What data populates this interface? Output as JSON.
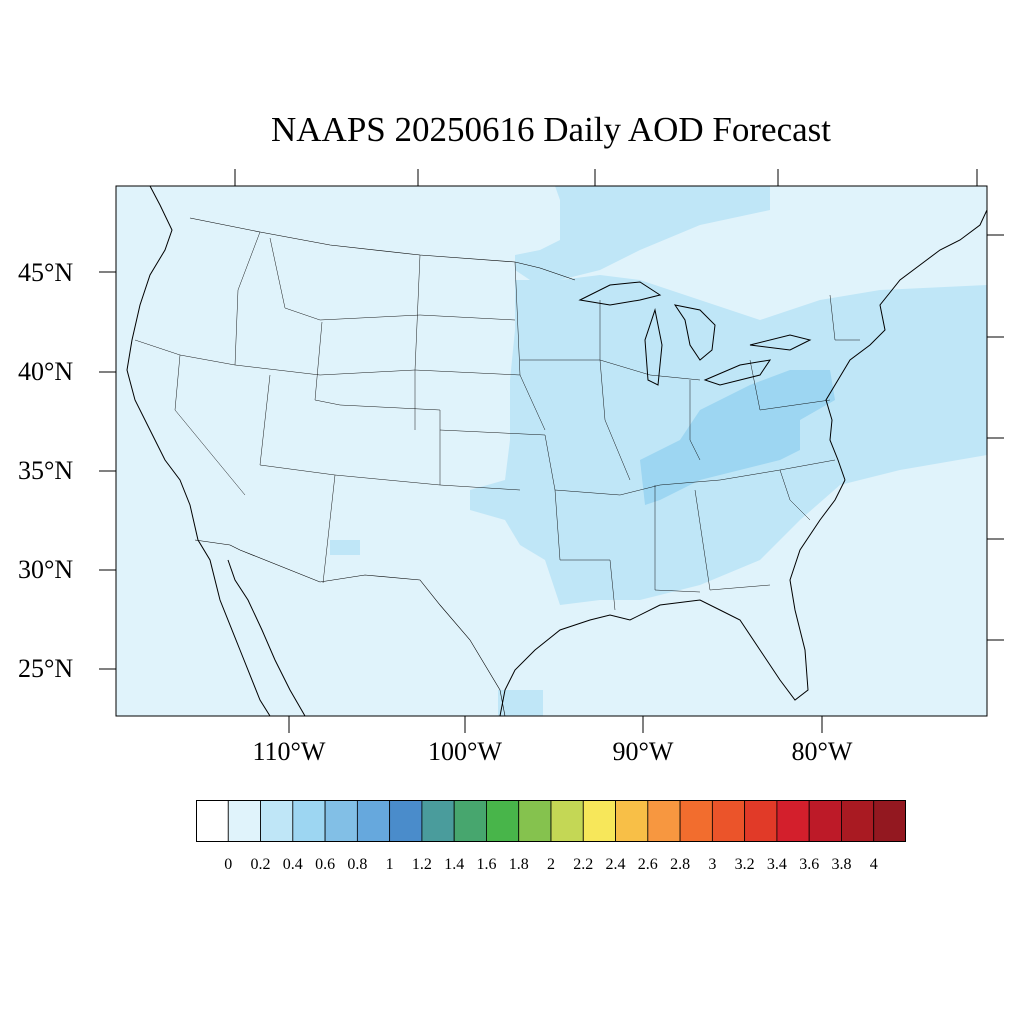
{
  "title": "NAAPS 20250616 Daily AOD Forecast",
  "map": {
    "projection": "cylindrical equidistant",
    "region": "Contiguous United States",
    "background_color": "#e0f3fb",
    "lat_range": [
      22.5,
      49.5
    ],
    "lon_range": [
      -119,
      -70
    ],
    "lat_labels": [
      "45°N",
      "40°N",
      "35°N",
      "30°N",
      "25°N"
    ],
    "lon_labels": [
      "110°W",
      "100°W",
      "90°W",
      "80°W"
    ],
    "field": "Daily AOD",
    "regions": [
      {
        "name": "Upper Midwest / Great Lakes",
        "value_range": "0.2–0.4",
        "color": "#bfe6f7"
      },
      {
        "name": "Ohio Valley / Mid-Atlantic",
        "value_range": "0.4–0.6",
        "color": "#9dd6f2"
      },
      {
        "name": "Southeast",
        "value_range": "0.2–0.4",
        "color": "#bfe6f7"
      },
      {
        "name": "Western and Plains states",
        "value_range": "0–0.2",
        "color": "#e0f3fb"
      }
    ]
  },
  "colorbar": {
    "labels": [
      "0",
      "0.2",
      "0.4",
      "0.6",
      "0.8",
      "1",
      "1.2",
      "1.4",
      "1.6",
      "1.8",
      "2",
      "2.2",
      "2.4",
      "2.6",
      "2.8",
      "3",
      "3.2",
      "3.4",
      "3.6",
      "3.8",
      "4"
    ],
    "colors": [
      "#ffffff",
      "#e0f3fb",
      "#bfe6f7",
      "#9dd6f2",
      "#82bfe6",
      "#66a8dd",
      "#4a8ccb",
      "#4a9c9c",
      "#47a66e",
      "#48b54a",
      "#85c24e",
      "#c4d755",
      "#f7e75a",
      "#f8bf47",
      "#f79740",
      "#f26d2e",
      "#eb542a",
      "#e13a28",
      "#d31f2c",
      "#bd1a28",
      "#a91a22",
      "#931820"
    ]
  }
}
